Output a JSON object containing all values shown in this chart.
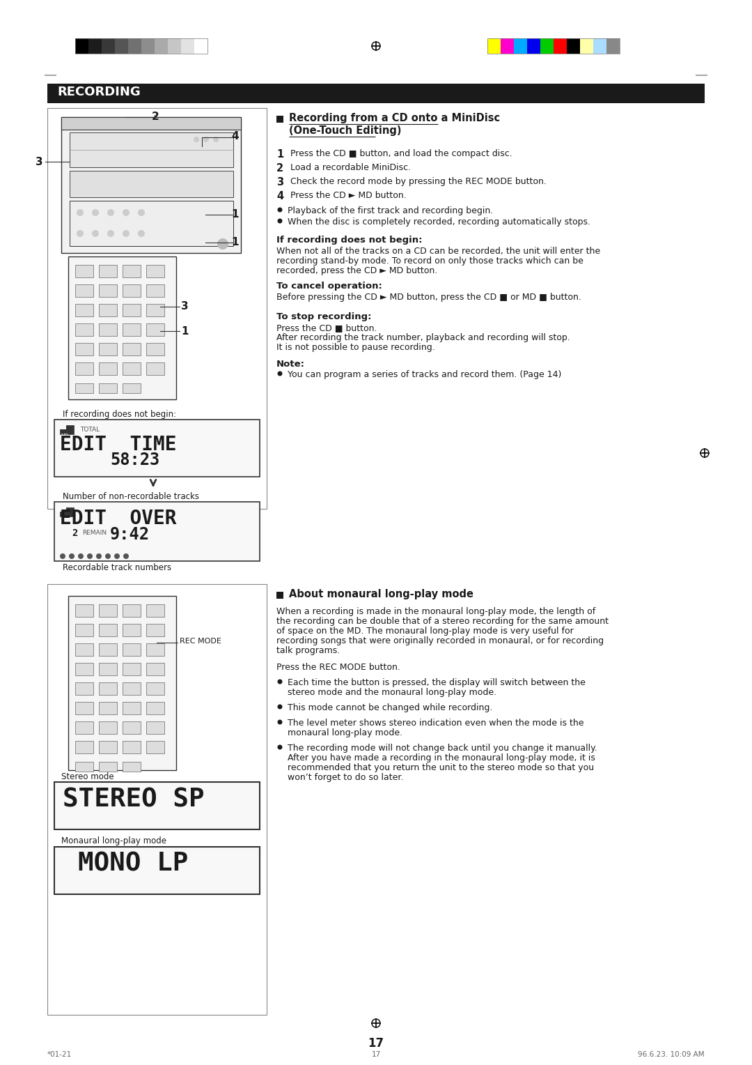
{
  "page_bg": "#ffffff",
  "page_number": "17",
  "header_bar_color": "#1a1a1a",
  "header_text": "RECORDING",
  "header_text_color": "#ffffff",
  "section1_title_line1": "Recording from a CD onto a MiniDisc",
  "section1_title_line2": "(One-Touch Editing)",
  "section1_steps": [
    {
      "num": "1",
      "text": "Press the CD ■ button, and load the compact disc."
    },
    {
      "num": "2",
      "text": "Load a recordable MiniDisc."
    },
    {
      "num": "3",
      "text": "Check the record mode by pressing the REC MODE button."
    },
    {
      "num": "4",
      "text": "Press the CD ► MD button."
    }
  ],
  "section1_bullets": [
    "Playback of the first track and recording begin.",
    "When the disc is completely recorded, recording automatically stops."
  ],
  "section1_sub1_title": "If recording does not begin:",
  "section1_sub1_body": "When not all of the tracks on a CD can be recorded, the unit will enter the\nrecording stand-by mode. To record on only those tracks which can be\nrecorded, press the CD ► MD button.",
  "section1_sub2_title": "To cancel operation:",
  "section1_sub2_body": "Before pressing the CD ► MD button, press the CD ■ or MD ■ button.",
  "section1_sub3_title": "To stop recording:",
  "section1_sub3_body": "Press the CD ■ button.\nAfter recording the track number, playback and recording will stop.\nIt is not possible to pause recording.",
  "note_title": "Note:",
  "note_bullets": [
    "You can program a series of tracks and record them. (Page 14)"
  ],
  "section2_title": "About monaural long-play mode",
  "section2_body1": "When a recording is made in the monaural long-play mode, the length of\nthe recording can be double that of a stereo recording for the same amount\nof space on the MD. The monaural long-play mode is very useful for\nrecording songs that were originally recorded in monaural, or for recording\ntalk programs.",
  "section2_body2": "Press the REC MODE button.",
  "section2_bullets": [
    "Each time the button is pressed, the display will switch between the\nstereo mode and the monaural long-play mode.",
    "This mode cannot be changed while recording.",
    "The level meter shows stereo indication even when the mode is the\nmonaural long-play mode.",
    "The recording mode will not change back until you change it manually.\nAfter you have made a recording in the monaural long-play mode, it is\nrecommended that you return the unit to the stereo mode so that you\nwon’t forget to do so later."
  ],
  "display1_label": "If recording does not begin:",
  "display1_line1": "EDIT  TIME",
  "display1_sub": "TOTAL",
  "display1_time": "58:23",
  "display2_label": "Number of non-recordable tracks",
  "display2_line1": "EDIT  OVER",
  "display2_num": "2",
  "display2_remain": "REMAIN",
  "display2_time": "9:42",
  "display2_footer": "Recordable track numbers",
  "stereo_label": "Stereo mode",
  "stereo_display": "STEREO SP",
  "mono_label": "Monaural long-play mode",
  "mono_display": "MONO LP",
  "footer_left": "*01-21",
  "footer_center": "17",
  "footer_right": "96.6.23. 10:09 AM",
  "gs_colors": [
    "#000000",
    "#1c1c1c",
    "#383838",
    "#555555",
    "#717171",
    "#8d8d8d",
    "#aaaaaa",
    "#c6c6c6",
    "#e2e2e2",
    "#ffffff"
  ],
  "col_colors": [
    "#ffff00",
    "#ff00cc",
    "#00aaff",
    "#0000ee",
    "#00cc00",
    "#ff0000",
    "#000000",
    "#ffffaa",
    "#aaddff",
    "#888888"
  ]
}
